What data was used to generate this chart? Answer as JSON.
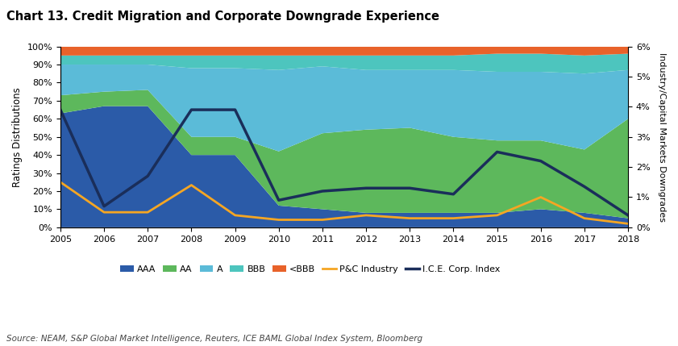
{
  "years": [
    2005,
    2006,
    2007,
    2008,
    2009,
    2010,
    2011,
    2012,
    2013,
    2014,
    2015,
    2016,
    2017,
    2018
  ],
  "AAA_pct": [
    63,
    67,
    67,
    40,
    40,
    12,
    10,
    8,
    8,
    8,
    8,
    10,
    8,
    5
  ],
  "AA_pct": [
    10,
    8,
    9,
    10,
    10,
    30,
    42,
    46,
    47,
    42,
    40,
    38,
    35,
    55
  ],
  "A_pct": [
    17,
    15,
    14,
    38,
    38,
    45,
    37,
    33,
    32,
    37,
    38,
    38,
    42,
    27
  ],
  "BBB_pct": [
    5,
    5,
    5,
    7,
    7,
    8,
    6,
    8,
    8,
    8,
    10,
    10,
    10,
    9
  ],
  "ltBBB_pct": [
    5,
    5,
    5,
    5,
    5,
    5,
    5,
    5,
    5,
    5,
    4,
    4,
    5,
    4
  ],
  "pc_industry": [
    1.5,
    0.5,
    0.5,
    1.4,
    0.4,
    0.25,
    0.25,
    0.4,
    0.3,
    0.3,
    0.4,
    1.0,
    0.3,
    0.12
  ],
  "ice_corp": [
    3.9,
    0.7,
    1.7,
    3.9,
    3.9,
    0.9,
    1.2,
    1.3,
    1.3,
    1.1,
    2.5,
    2.2,
    1.35,
    0.4
  ],
  "title": "Chart 13. Credit Migration and Corporate Downgrade Experience",
  "ylabel_left": "Ratings Distributions",
  "ylabel_right": "Industry/Capital Markets Downgrades",
  "source": "Source: NEAM, S&P Global Market Intelligence, Reuters, ICE BAML Global Index System, Bloomberg",
  "color_AAA": "#2B5BA8",
  "color_AA": "#5DB85C",
  "color_A": "#5BBBD8",
  "color_BBB": "#4DC5BE",
  "color_ltBBB": "#E8622A",
  "color_pc": "#F5A623",
  "color_ice": "#1A2E5A",
  "yticks_left": [
    0,
    10,
    20,
    30,
    40,
    50,
    60,
    70,
    80,
    90,
    100
  ],
  "yticks_right": [
    0,
    1,
    2,
    3,
    4,
    5,
    6
  ]
}
